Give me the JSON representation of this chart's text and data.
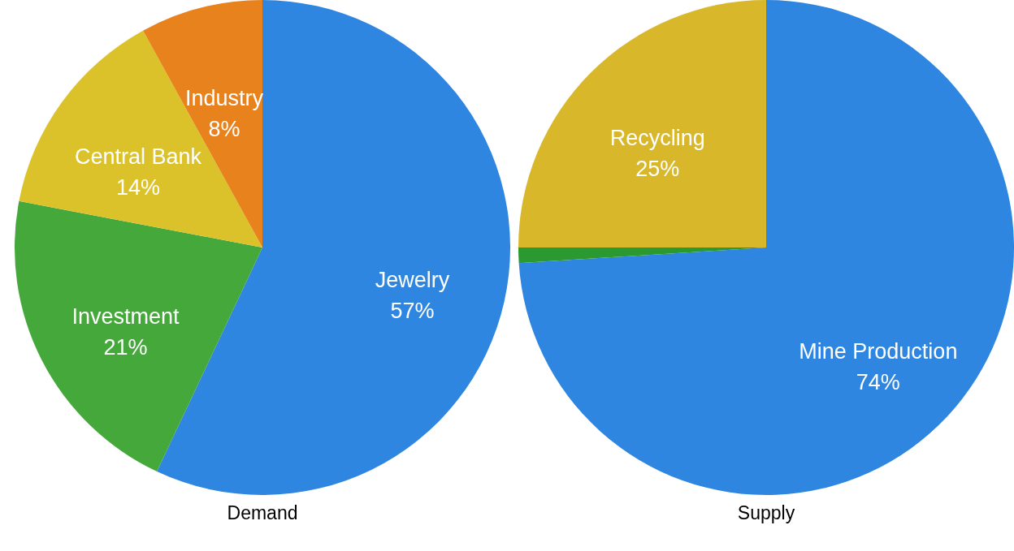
{
  "chart_data": [
    {
      "type": "pie",
      "title": "Demand",
      "categories": [
        "Jewelry",
        "Investment",
        "Central Bank",
        "Industry"
      ],
      "values": [
        57,
        21,
        14,
        8
      ],
      "colors": [
        "#2f86e0",
        "#45a83a",
        "#dcc22a",
        "#e8821c"
      ],
      "value_labels": [
        "57%",
        "21%",
        "14%",
        "8%"
      ]
    },
    {
      "type": "pie",
      "title": "Supply",
      "categories": [
        "Mine Production",
        null,
        "Recycling"
      ],
      "values": [
        74,
        1,
        25
      ],
      "colors": [
        "#2f86e0",
        "#2a9a30",
        "#d8b82a"
      ],
      "value_labels": [
        "74%",
        null,
        "25%"
      ]
    }
  ]
}
